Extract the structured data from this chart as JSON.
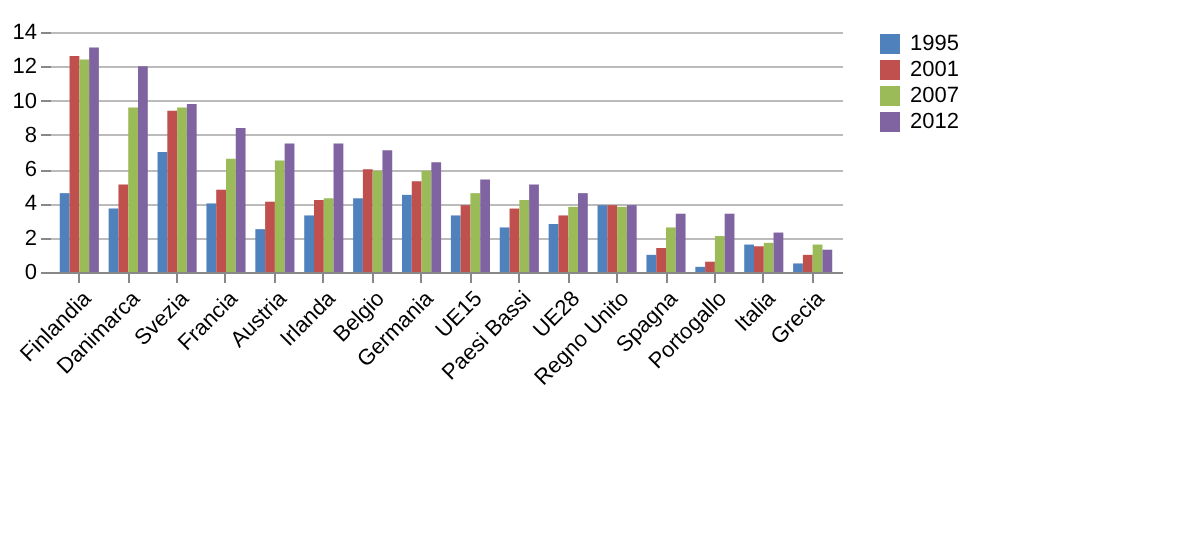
{
  "chart_data": {
    "type": "bar",
    "categories": [
      "Finlandia",
      "Danimarca",
      "Svezia",
      "Francia",
      "Austria",
      "Irlanda",
      "Belgio",
      "Germania",
      "UE15",
      "Paesi Bassi",
      "UE28",
      "Regno Unito",
      "Spagna",
      "Portogallo",
      "Italia",
      "Grecia"
    ],
    "series": [
      {
        "name": "1995",
        "color": "#4f81bd",
        "values": [
          4.6,
          3.7,
          7.0,
          4.0,
          2.5,
          3.3,
          4.3,
          4.5,
          3.3,
          2.6,
          2.8,
          3.9,
          1.0,
          0.3,
          1.6,
          0.5
        ]
      },
      {
        "name": "2001",
        "color": "#c0504d",
        "values": [
          12.6,
          5.1,
          9.4,
          4.8,
          4.1,
          4.2,
          6.0,
          5.3,
          3.9,
          3.7,
          3.3,
          3.9,
          1.4,
          0.6,
          1.5,
          1.0
        ]
      },
      {
        "name": "2007",
        "color": "#9bbb59",
        "values": [
          12.4,
          9.6,
          9.6,
          6.6,
          6.5,
          4.3,
          5.9,
          5.9,
          4.6,
          4.2,
          3.8,
          3.8,
          2.6,
          2.1,
          1.7,
          1.6
        ]
      },
      {
        "name": "2012",
        "color": "#8064a2",
        "values": [
          13.1,
          12.0,
          9.8,
          8.4,
          7.5,
          7.5,
          7.1,
          6.4,
          5.4,
          5.1,
          4.6,
          3.9,
          3.4,
          3.4,
          2.3,
          1.3
        ]
      }
    ],
    "ylim": [
      0,
      14
    ],
    "yticks": [
      0,
      2,
      4,
      6,
      8,
      10,
      12,
      14
    ],
    "grid": "y",
    "legend": "right"
  }
}
